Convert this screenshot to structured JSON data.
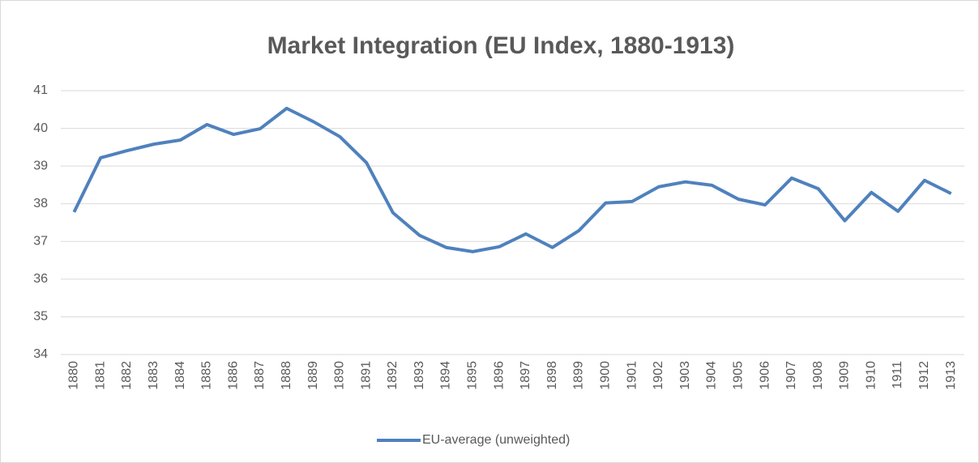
{
  "chart_data": {
    "type": "line",
    "title": "Market Integration (EU Index, 1880-1913)",
    "categories": [
      "1880",
      "1881",
      "1882",
      "1883",
      "1884",
      "1885",
      "1886",
      "1887",
      "1888",
      "1889",
      "1890",
      "1891",
      "1892",
      "1893",
      "1894",
      "1895",
      "1896",
      "1897",
      "1898",
      "1899",
      "1900",
      "1901",
      "1902",
      "1903",
      "1904",
      "1905",
      "1906",
      "1907",
      "1908",
      "1909",
      "1910",
      "1911",
      "1912",
      "1913"
    ],
    "series": [
      {
        "name": "EU-average (unweighted)",
        "color": "#4f81bd",
        "values": [
          37.78,
          39.22,
          39.41,
          39.58,
          39.69,
          40.1,
          39.84,
          39.99,
          40.53,
          40.18,
          39.78,
          39.09,
          37.76,
          37.16,
          36.84,
          36.73,
          36.86,
          37.2,
          36.84,
          37.29,
          38.02,
          38.06,
          38.45,
          38.58,
          38.49,
          38.12,
          37.97,
          38.68,
          38.4,
          37.55,
          38.3,
          37.8,
          38.62,
          38.27
        ]
      }
    ],
    "ylim": [
      34,
      41
    ],
    "yticks": [
      34,
      35,
      36,
      37,
      38,
      39,
      40,
      41
    ],
    "grid": true,
    "legend": "bottom"
  }
}
